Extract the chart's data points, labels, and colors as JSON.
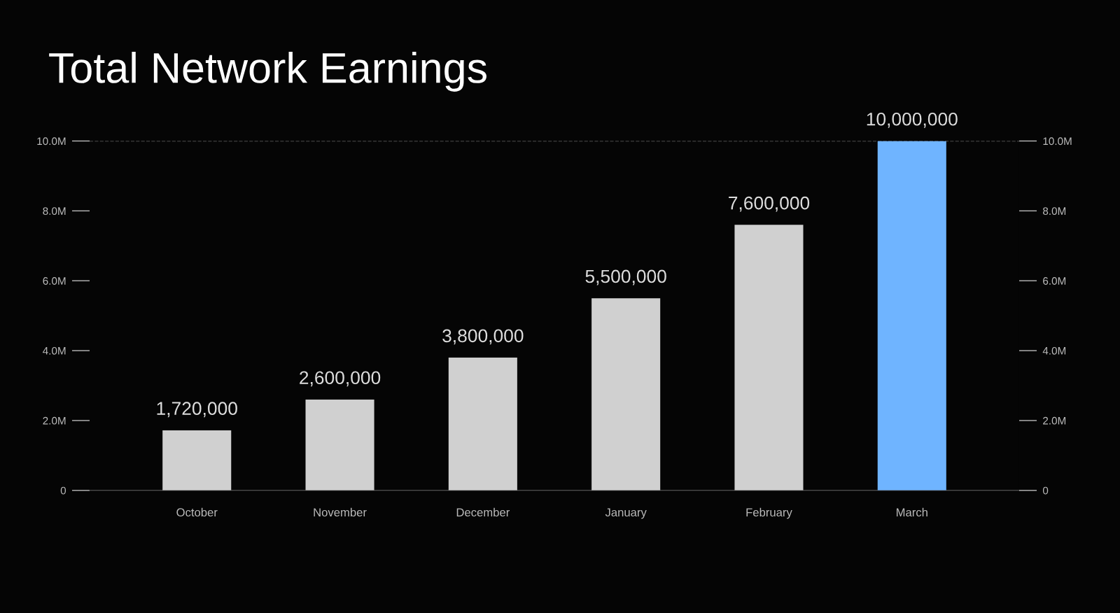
{
  "chart_data": {
    "type": "bar",
    "title": "Total Network Earnings",
    "categories": [
      "October",
      "November",
      "December",
      "January",
      "February",
      "March"
    ],
    "values": [
      1720000,
      2600000,
      3800000,
      5500000,
      7600000,
      10000000
    ],
    "colors": [
      "#d0d0d0",
      "#d0d0d0",
      "#d0d0d0",
      "#d0d0d0",
      "#d0d0d0",
      "#6fb4ff"
    ],
    "value_labels": [
      "1,720,000",
      "2,600,000",
      "3,800,000",
      "5,500,000",
      "7,600,000",
      "10,000,000"
    ],
    "ylim": [
      0,
      10000000
    ],
    "yticks": [
      0,
      {
        "value": 2000000,
        "label": "2.0M"
      },
      {
        "value": 4000000,
        "label": "4.0M"
      },
      {
        "value": 6000000,
        "label": "6.0M"
      },
      {
        "value": 8000000,
        "label": "8.0M"
      },
      {
        "value": 10000000,
        "label": "10.0M"
      }
    ],
    "y2lim": [
      0,
      10000000
    ],
    "y2ticks": [
      0,
      {
        "value": 2000000,
        "label": "2.0M"
      },
      {
        "value": 4000000,
        "label": "4.0M"
      },
      {
        "value": 6000000,
        "label": "6.0M"
      },
      {
        "value": 8000000,
        "label": "8.0M"
      },
      {
        "value": 10000000,
        "label": "10.0M"
      }
    ],
    "ref_lines": [
      {
        "axis": "y",
        "value": 10000000,
        "label": null,
        "color": "#666666",
        "line_style": "dashed"
      }
    ],
    "grid": false,
    "legend": false
  }
}
